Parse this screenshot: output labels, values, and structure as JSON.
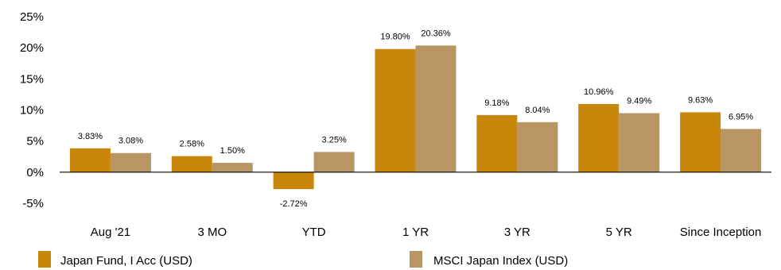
{
  "chart_data": {
    "type": "bar",
    "title": "",
    "xlabel": "",
    "ylabel": "",
    "categories": [
      "Aug '21",
      "3 MO",
      "YTD",
      "1 YR",
      "3 YR",
      "5 YR",
      "Since Inception"
    ],
    "series": [
      {
        "name": "Japan Fund, I Acc (USD)",
        "color": "#C8860B",
        "values": [
          3.83,
          2.58,
          -2.72,
          19.8,
          9.18,
          10.96,
          9.63
        ],
        "labels": [
          "3.83%",
          "2.58%",
          "-2.72%",
          "19.80%",
          "9.18%",
          "10.96%",
          "9.63%"
        ]
      },
      {
        "name": "MSCI Japan Index (USD)",
        "color": "#B89563",
        "values": [
          3.08,
          1.5,
          3.25,
          20.36,
          8.04,
          9.49,
          6.95
        ],
        "labels": [
          "3.08%",
          "1.50%",
          "3.25%",
          "20.36%",
          "8.04%",
          "9.49%",
          "6.95%"
        ]
      }
    ],
    "ylim": [
      -5,
      25
    ],
    "yticks": [
      -5,
      0,
      5,
      10,
      15,
      20,
      25
    ],
    "ytick_labels": [
      "-5%",
      "0%",
      "5%",
      "10%",
      "15%",
      "20%",
      "25%"
    ],
    "grid": false,
    "legend": "bottom"
  }
}
